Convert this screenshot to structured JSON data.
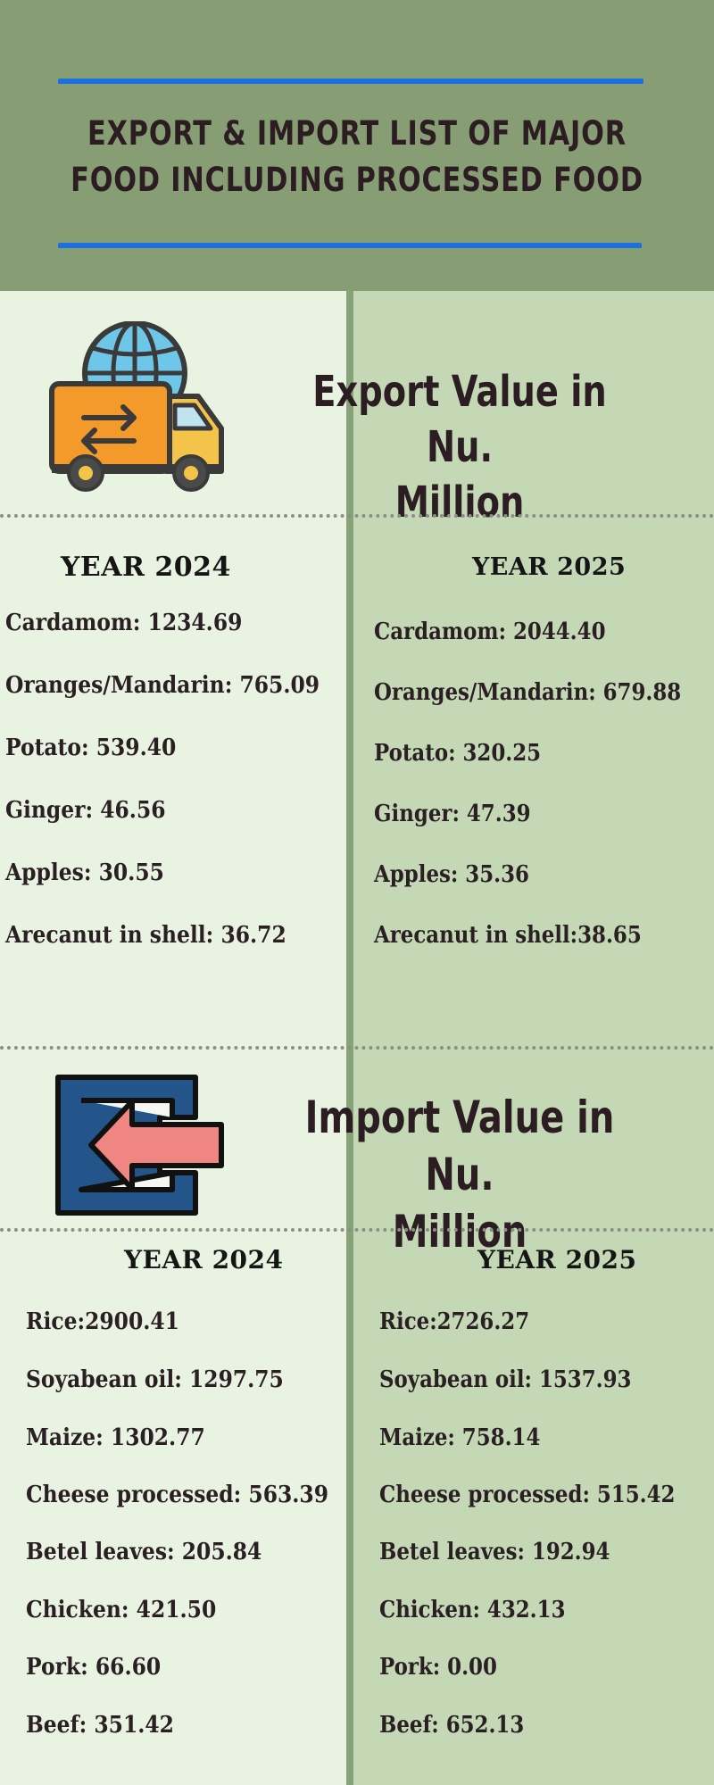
{
  "header": {
    "title_line1": "EXPORT & IMPORT LIST OF MAJOR",
    "title_line2": "FOOD INCLUDING PROCESSED FOOD"
  },
  "export": {
    "heading_line1": "Export Value in Nu.",
    "heading_line2": "Million",
    "icon": "delivery-truck-globe-icon",
    "year_left": "YEAR 2024",
    "year_right": "YEAR 2025",
    "items_2024": [
      "Cardamom: 1234.69",
      "Oranges/Mandarin: 765.09",
      "Potato: 539.40",
      "Ginger: 46.56",
      "Apples: 30.55",
      "Arecanut in shell: 36.72"
    ],
    "items_2025": [
      "Cardamom: 2044.40",
      "Oranges/Mandarin: 679.88",
      "Potato: 320.25",
      "Ginger: 47.39",
      "Apples: 35.36",
      "Arecanut in shell:38.65"
    ]
  },
  "import": {
    "heading_line1": "Import Value in Nu.",
    "heading_line2": "Million",
    "icon": "import-arrow-icon",
    "year_left": "YEAR 2024",
    "year_right": "YEAR 2025",
    "items_2024": [
      "Rice:2900.41",
      "Soyabean oil: 1297.75",
      "Maize: 1302.77",
      "Cheese processed: 563.39",
      "Betel leaves: 205.84",
      "Chicken: 421.50",
      "Pork: 66.60",
      "Beef: 351.42"
    ],
    "items_2025": [
      "Rice:2726.27",
      "Soyabean oil: 1537.93",
      "Maize: 758.14",
      "Cheese processed: 515.42",
      "Betel leaves: 192.94",
      "Chicken: 432.13",
      "Pork: 0.00",
      "Beef: 652.13"
    ]
  },
  "colors": {
    "header_bg": "#879d74",
    "rule_blue": "#1c6fe0",
    "left_bg": "#e8f3e1",
    "right_bg": "#c4d8b6",
    "divider": "#88a277"
  }
}
